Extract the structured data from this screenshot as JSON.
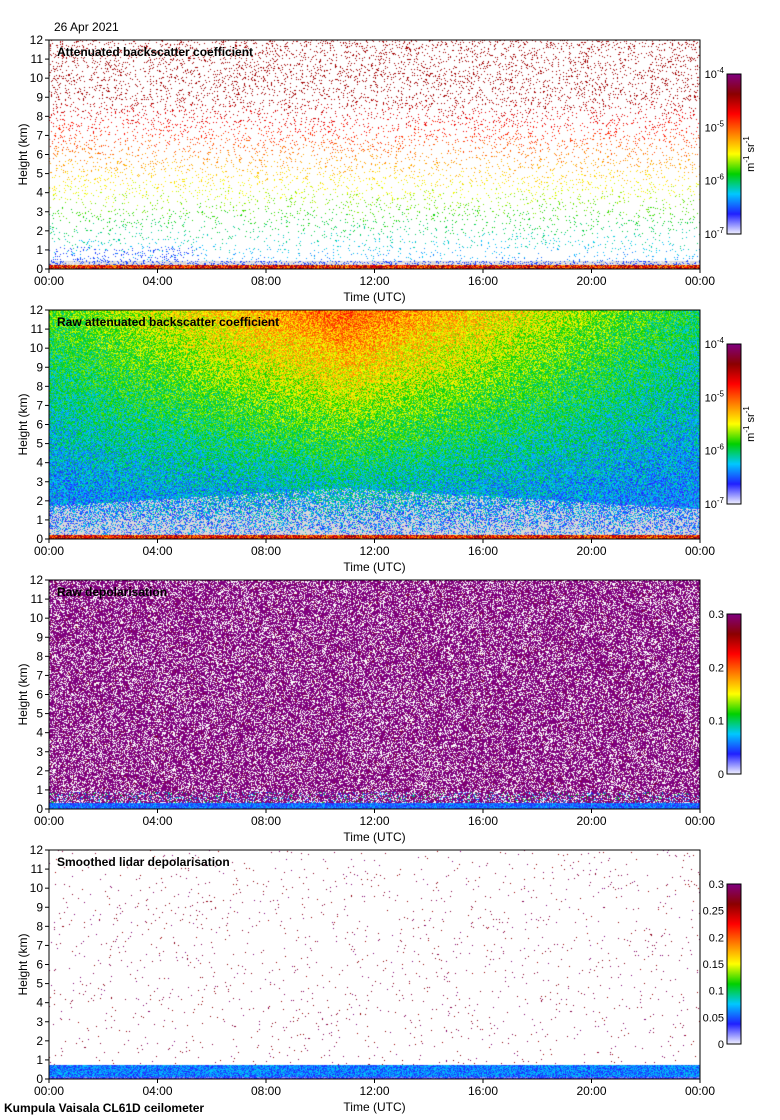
{
  "figure": {
    "date": "26 Apr 2021",
    "footer": "Kumpula Vaisala CL61D ceilometer"
  },
  "colors": {
    "no_data": "#d9d9d9",
    "colormap": [
      "#f2f2ff",
      "#2020ff",
      "#00c8ff",
      "#00d000",
      "#ffff00",
      "#ff8000",
      "#ff0000",
      "#8b0000",
      "#800080"
    ]
  },
  "chart_data": [
    {
      "type": "heatmap",
      "title": "Attenuated backscatter coefficient",
      "xlabel": "Time (UTC)",
      "ylabel": "Height (km)",
      "x_ticks": [
        "00:00",
        "04:00",
        "08:00",
        "12:00",
        "16:00",
        "20:00",
        "00:00"
      ],
      "y_ticks": [
        "0",
        "1",
        "2",
        "3",
        "4",
        "5",
        "6",
        "7",
        "8",
        "9",
        "10",
        "11",
        "12"
      ],
      "xlim_hours": [
        0,
        24
      ],
      "ylim_km": [
        0,
        12
      ],
      "colorbar": {
        "scale": "log",
        "range": [
          1e-07,
          0.0001
        ],
        "ticks": [
          {
            "base": "10",
            "exp": "-4"
          },
          {
            "base": "10",
            "exp": "-5"
          },
          {
            "base": "10",
            "exp": "-6"
          },
          {
            "base": "10",
            "exp": "-7"
          }
        ],
        "unit": {
          "m": "m",
          "m_exp": "-1",
          "sr": "sr",
          "sr_exp": "-1"
        }
      },
      "field": "screened_backscatter"
    },
    {
      "type": "heatmap",
      "title": "Raw attenuated backscatter coefficient",
      "xlabel": "Time (UTC)",
      "ylabel": "Height (km)",
      "x_ticks": [
        "00:00",
        "04:00",
        "08:00",
        "12:00",
        "16:00",
        "20:00",
        "00:00"
      ],
      "y_ticks": [
        "0",
        "1",
        "2",
        "3",
        "4",
        "5",
        "6",
        "7",
        "8",
        "9",
        "10",
        "11",
        "12"
      ],
      "xlim_hours": [
        0,
        24
      ],
      "ylim_km": [
        0,
        12
      ],
      "colorbar": {
        "scale": "log",
        "range": [
          1e-07,
          0.0001
        ],
        "ticks": [
          {
            "base": "10",
            "exp": "-4"
          },
          {
            "base": "10",
            "exp": "-5"
          },
          {
            "base": "10",
            "exp": "-6"
          },
          {
            "base": "10",
            "exp": "-7"
          }
        ],
        "unit": {
          "m": "m",
          "m_exp": "-1",
          "sr": "sr",
          "sr_exp": "-1"
        }
      },
      "field": "raw_backscatter"
    },
    {
      "type": "heatmap",
      "title": "Raw depolarisation",
      "xlabel": "Time (UTC)",
      "ylabel": "Height (km)",
      "x_ticks": [
        "00:00",
        "04:00",
        "08:00",
        "12:00",
        "16:00",
        "20:00",
        "00:00"
      ],
      "y_ticks": [
        "0",
        "1",
        "2",
        "3",
        "4",
        "5",
        "6",
        "7",
        "8",
        "9",
        "10",
        "11",
        "12"
      ],
      "xlim_hours": [
        0,
        24
      ],
      "ylim_km": [
        0,
        12
      ],
      "colorbar": {
        "scale": "linear",
        "range": [
          0,
          0.3
        ],
        "ticks": [
          "0.3",
          "0.2",
          "0.1",
          "0"
        ]
      },
      "field": "raw_depolarisation"
    },
    {
      "type": "heatmap",
      "title": "Smoothed lidar depolarisation",
      "xlabel": "Time (UTC)",
      "ylabel": "Height (km)",
      "x_ticks": [
        "00:00",
        "04:00",
        "08:00",
        "12:00",
        "16:00",
        "20:00",
        "00:00"
      ],
      "y_ticks": [
        "0",
        "1",
        "2",
        "3",
        "4",
        "5",
        "6",
        "7",
        "8",
        "9",
        "10",
        "11",
        "12"
      ],
      "xlim_hours": [
        0,
        24
      ],
      "ylim_km": [
        0,
        12
      ],
      "colorbar": {
        "scale": "linear",
        "range": [
          0,
          0.3
        ],
        "ticks": [
          "0.3",
          "0.25",
          "0.2",
          "0.15",
          "0.1",
          "0.05",
          "0"
        ]
      },
      "field": "smoothed_depolarisation"
    }
  ]
}
